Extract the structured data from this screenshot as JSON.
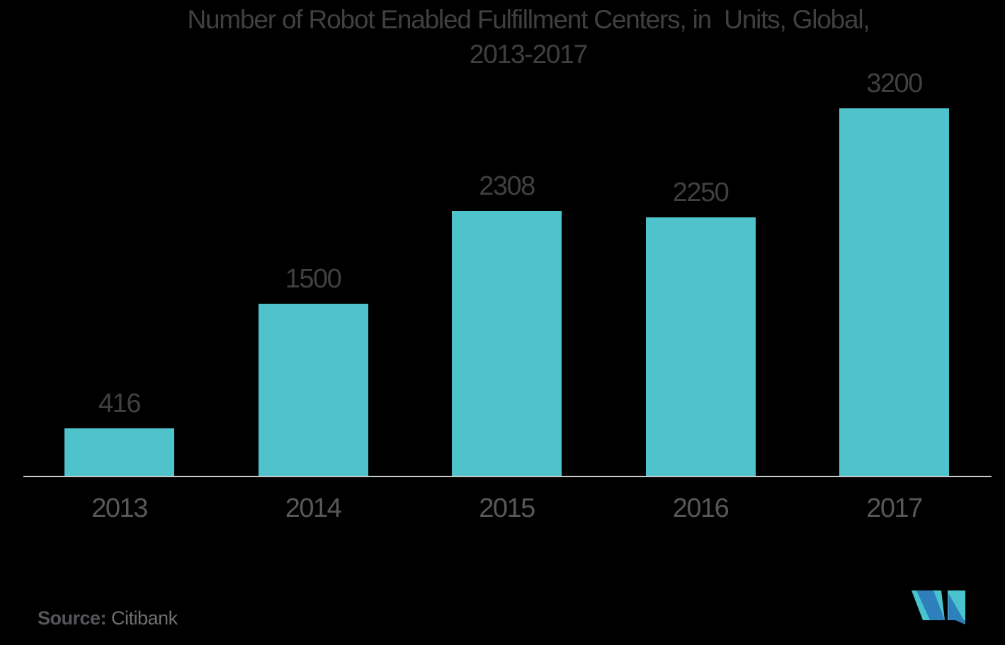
{
  "chart_data": {
    "type": "bar",
    "title": "Number of Robot Enabled Fulfillment Centers, in  Units, Global, 2013-2017",
    "title_line1": "Number of Robot Enabled Fulfillment Centers, in  Units, Global,",
    "title_line2": "2013-2017",
    "categories": [
      "2013",
      "2014",
      "2015",
      "2016",
      "2017"
    ],
    "values": [
      416,
      1500,
      2308,
      2250,
      3200
    ],
    "value_labels": [
      "416",
      "1500",
      "2308",
      "2250",
      "3200"
    ],
    "xlabel": "",
    "ylabel": "",
    "ylim": [
      0,
      3200
    ],
    "grid": false,
    "legend": "none",
    "bar_color": "#4FC3CB"
  },
  "source": {
    "label": "Source:",
    "name": " Citibank"
  },
  "logo": {
    "name": "mordor-intelligence-logo"
  },
  "colors": {
    "background": "#000000",
    "bar": "#4FC3CB",
    "title": "#3F4041",
    "value_label": "#3F4041",
    "tick_label": "#57585B",
    "axis_line": "#C9CACB",
    "source_label": "#55565A",
    "source_value": "#6E6F72",
    "logo_teal": "#49C4CE",
    "logo_blue": "#2E80BD"
  }
}
